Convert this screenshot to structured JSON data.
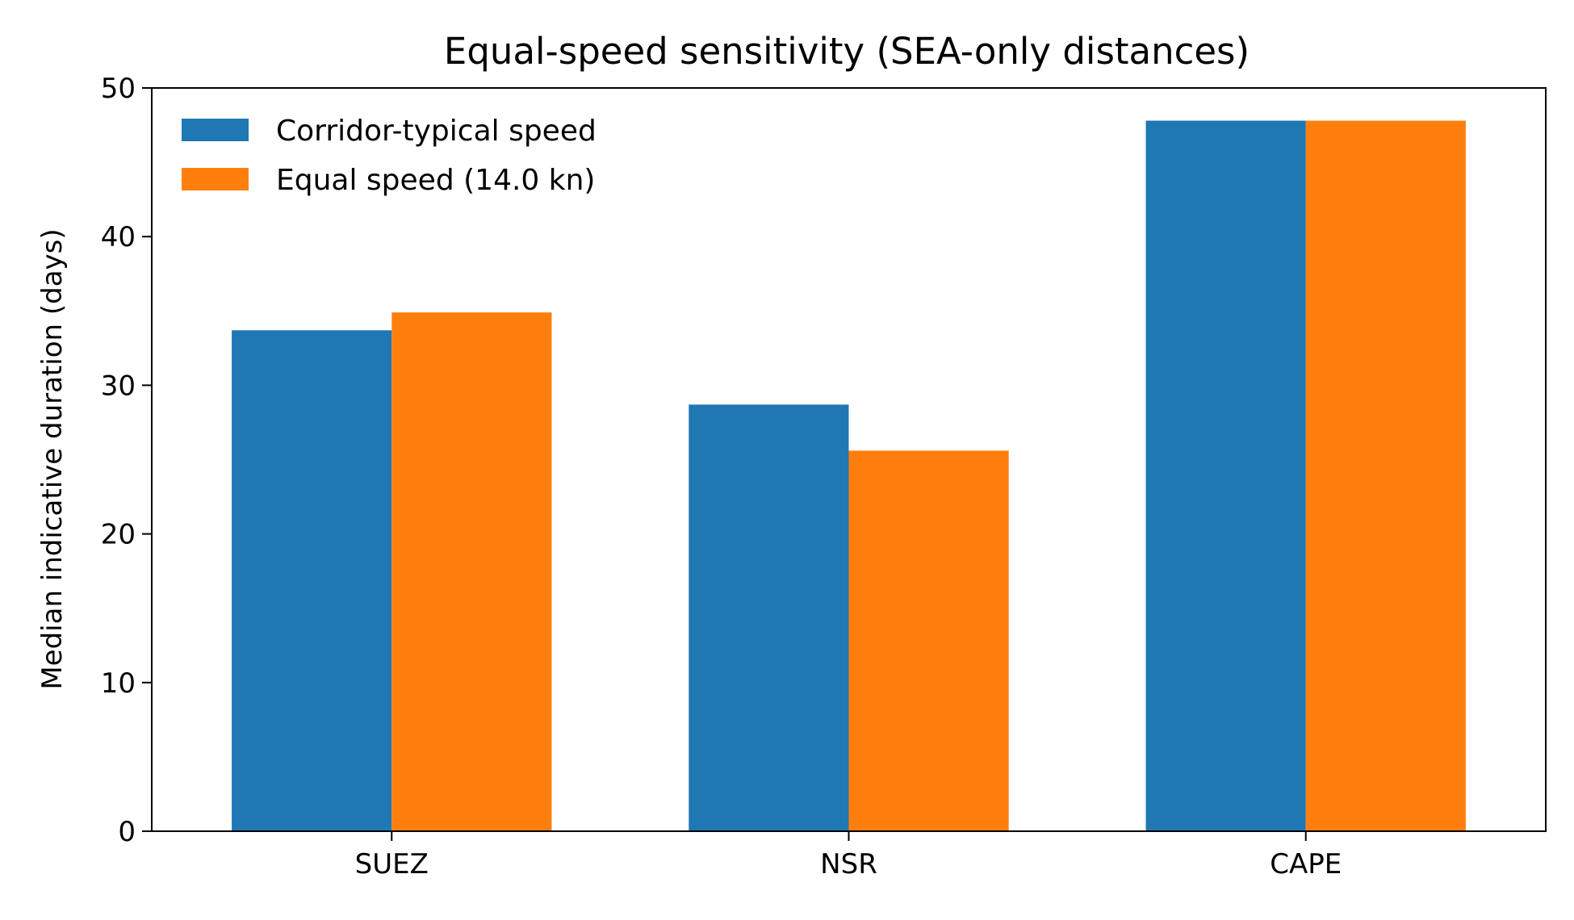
{
  "chart_data": {
    "type": "bar",
    "title": "Equal-speed sensitivity (SEA-only distances)",
    "xlabel": "",
    "ylabel": "Median indicative duration (days)",
    "categories": [
      "SUEZ",
      "NSR",
      "CAPE"
    ],
    "series": [
      {
        "name": "Corridor-typical speed",
        "values": [
          33.7,
          28.7,
          47.8
        ],
        "color": "#1f77b4"
      },
      {
        "name": "Equal speed (14.0 kn)",
        "values": [
          34.9,
          25.6,
          47.8
        ],
        "color": "#ff7f0e"
      }
    ],
    "ylim": [
      0,
      50
    ],
    "yticks": [
      "0",
      "10",
      "20",
      "30",
      "40",
      "50"
    ],
    "grid": false,
    "legend_position": "top-left"
  }
}
